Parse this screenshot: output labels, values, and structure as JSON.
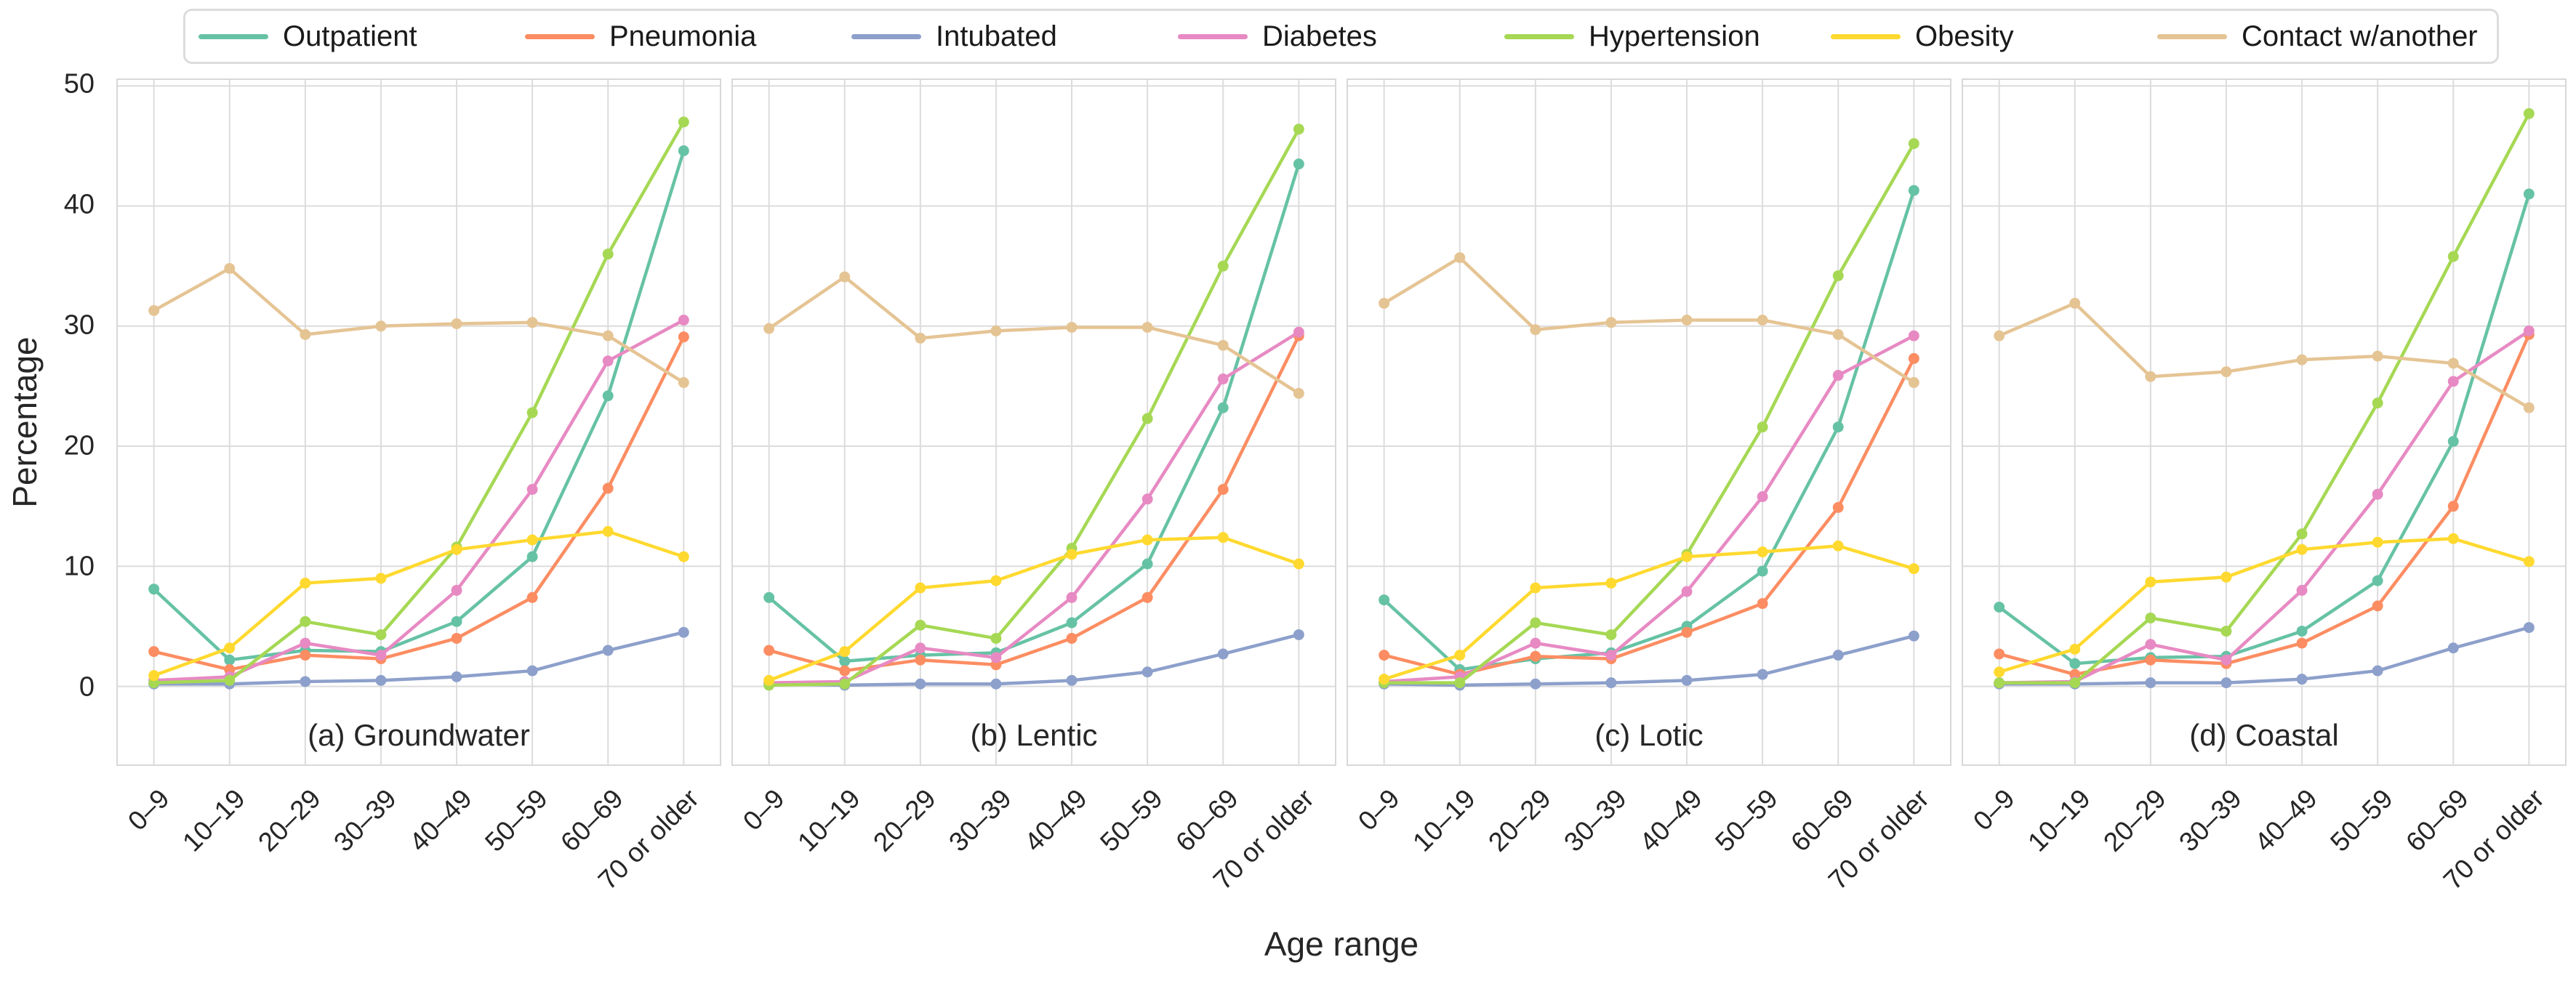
{
  "chart_data": {
    "type": "line",
    "title": "",
    "xlabel": "Age range",
    "ylabel": "Percentage",
    "categories": [
      "0–9",
      "10–19",
      "20–29",
      "30–39",
      "40–49",
      "50–59",
      "60–69",
      "70 or older"
    ],
    "ylim": [
      -6.5,
      50.5
    ],
    "yticks": [
      0,
      10,
      20,
      30,
      40,
      50
    ],
    "grid": true,
    "legend_position": "top",
    "marker": "circle",
    "legend": [
      {
        "label": "Outpatient",
        "color": "#66c2a5"
      },
      {
        "label": "Pneumonia",
        "color": "#fc8d62"
      },
      {
        "label": "Intubated",
        "color": "#8da0cb"
      },
      {
        "label": "Diabetes",
        "color": "#e78ac3"
      },
      {
        "label": "Hypertension",
        "color": "#a6d854"
      },
      {
        "label": "Obesity",
        "color": "#ffd92f"
      },
      {
        "label": "Contact w/another",
        "color": "#e5c494"
      }
    ],
    "subplots": [
      {
        "caption": "(a) Groundwater",
        "series": [
          {
            "name": "Outpatient",
            "values": [
              8.1,
              2.2,
              3.0,
              2.9,
              5.4,
              10.8,
              24.2,
              44.6
            ]
          },
          {
            "name": "Pneumonia",
            "values": [
              2.9,
              1.4,
              2.6,
              2.3,
              4.0,
              7.4,
              16.5,
              29.1
            ]
          },
          {
            "name": "Intubated",
            "values": [
              0.2,
              0.2,
              0.4,
              0.5,
              0.8,
              1.3,
              3.0,
              4.5
            ]
          },
          {
            "name": "Diabetes",
            "values": [
              0.5,
              0.8,
              3.6,
              2.6,
              8.0,
              16.4,
              27.1,
              30.5
            ]
          },
          {
            "name": "Hypertension",
            "values": [
              0.3,
              0.5,
              5.4,
              4.3,
              11.6,
              22.8,
              36.0,
              47.0
            ]
          },
          {
            "name": "Obesity",
            "values": [
              0.9,
              3.2,
              8.6,
              9.0,
              11.4,
              12.2,
              12.9,
              10.8
            ]
          },
          {
            "name": "Contact w/another",
            "values": [
              31.3,
              34.8,
              29.3,
              30.0,
              30.2,
              30.3,
              29.2,
              25.3
            ]
          }
        ]
      },
      {
        "caption": "(b) Lentic",
        "series": [
          {
            "name": "Outpatient",
            "values": [
              7.4,
              2.1,
              2.6,
              2.8,
              5.3,
              10.2,
              23.2,
              43.5
            ]
          },
          {
            "name": "Pneumonia",
            "values": [
              3.0,
              1.3,
              2.2,
              1.8,
              4.0,
              7.4,
              16.4,
              29.2
            ]
          },
          {
            "name": "Intubated",
            "values": [
              0.2,
              0.1,
              0.2,
              0.2,
              0.5,
              1.2,
              2.7,
              4.3
            ]
          },
          {
            "name": "Diabetes",
            "values": [
              0.3,
              0.4,
              3.2,
              2.4,
              7.4,
              15.6,
              25.6,
              29.5
            ]
          },
          {
            "name": "Hypertension",
            "values": [
              0.1,
              0.2,
              5.1,
              4.0,
              11.5,
              22.3,
              35.0,
              46.4
            ]
          },
          {
            "name": "Obesity",
            "values": [
              0.5,
              2.9,
              8.2,
              8.8,
              11.0,
              12.2,
              12.4,
              10.2
            ]
          },
          {
            "name": "Contact w/another",
            "values": [
              29.8,
              34.1,
              29.0,
              29.6,
              29.9,
              29.9,
              28.4,
              24.4
            ]
          }
        ]
      },
      {
        "caption": "(c) Lotic",
        "series": [
          {
            "name": "Outpatient",
            "values": [
              7.2,
              1.4,
              2.3,
              2.8,
              5.0,
              9.6,
              21.6,
              41.3
            ]
          },
          {
            "name": "Pneumonia",
            "values": [
              2.6,
              1.0,
              2.5,
              2.3,
              4.5,
              6.9,
              14.9,
              27.3
            ]
          },
          {
            "name": "Intubated",
            "values": [
              0.2,
              0.1,
              0.2,
              0.3,
              0.5,
              1.0,
              2.6,
              4.2
            ]
          },
          {
            "name": "Diabetes",
            "values": [
              0.4,
              0.8,
              3.6,
              2.6,
              7.9,
              15.8,
              25.9,
              29.2
            ]
          },
          {
            "name": "Hypertension",
            "values": [
              0.3,
              0.3,
              5.3,
              4.3,
              11.0,
              21.6,
              34.2,
              45.2
            ]
          },
          {
            "name": "Obesity",
            "values": [
              0.6,
              2.6,
              8.2,
              8.6,
              10.8,
              11.2,
              11.7,
              9.8
            ]
          },
          {
            "name": "Contact w/another",
            "values": [
              31.9,
              35.7,
              29.7,
              30.3,
              30.5,
              30.5,
              29.3,
              25.3
            ]
          }
        ]
      },
      {
        "caption": "(d) Coastal",
        "series": [
          {
            "name": "Outpatient",
            "values": [
              6.6,
              1.9,
              2.4,
              2.5,
              4.6,
              8.8,
              20.4,
              41.0
            ]
          },
          {
            "name": "Pneumonia",
            "values": [
              2.7,
              1.0,
              2.2,
              1.9,
              3.6,
              6.7,
              15.0,
              29.3
            ]
          },
          {
            "name": "Intubated",
            "values": [
              0.2,
              0.2,
              0.3,
              0.3,
              0.6,
              1.3,
              3.2,
              4.9
            ]
          },
          {
            "name": "Diabetes",
            "values": [
              0.3,
              0.4,
              3.5,
              2.2,
              8.0,
              16.0,
              25.4,
              29.6
            ]
          },
          {
            "name": "Hypertension",
            "values": [
              0.3,
              0.3,
              5.7,
              4.6,
              12.7,
              23.6,
              35.8,
              47.7
            ]
          },
          {
            "name": "Obesity",
            "values": [
              1.2,
              3.1,
              8.7,
              9.1,
              11.4,
              12.0,
              12.3,
              10.4
            ]
          },
          {
            "name": "Contact w/another",
            "values": [
              29.2,
              31.9,
              25.8,
              26.2,
              27.2,
              27.5,
              26.9,
              23.2
            ]
          }
        ]
      }
    ]
  },
  "colors": {
    "background": "#ffffff",
    "grid": "#dcdcdc",
    "frame": "#d8d8d8",
    "text": "#262626",
    "legend_border": "#dcdcdc"
  }
}
